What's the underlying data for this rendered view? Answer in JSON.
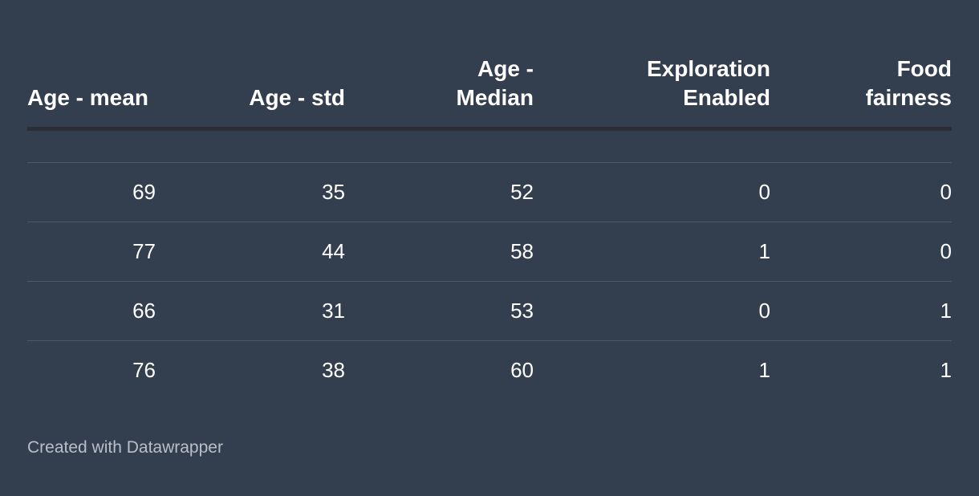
{
  "chart_data": {
    "type": "table",
    "columns": [
      "Age - mean",
      "Age - std",
      "Age -\nMedian",
      "Exploration\nEnabled",
      "Food\nfairness"
    ],
    "rows": [
      [
        69,
        35,
        52,
        0,
        0
      ],
      [
        77,
        44,
        58,
        1,
        0
      ],
      [
        66,
        31,
        53,
        0,
        1
      ],
      [
        76,
        38,
        60,
        1,
        1
      ]
    ]
  },
  "footer": {
    "credit": "Created with Datawrapper"
  },
  "colors": {
    "background": "#333e4f",
    "header_rule": "#2a2f36",
    "row_rule": "#4f5a69",
    "text": "#ffffff",
    "footer_text": "#b9bfc7"
  }
}
